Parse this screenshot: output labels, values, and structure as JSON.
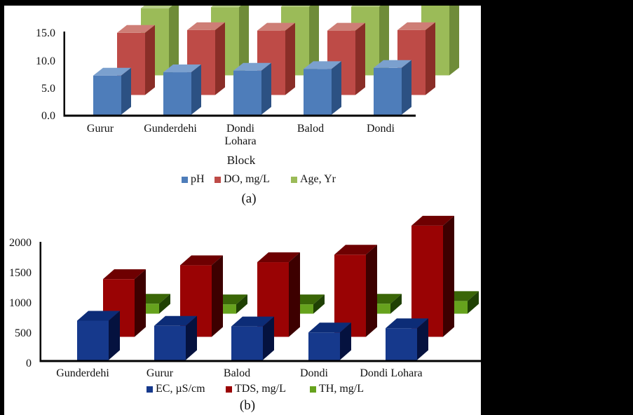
{
  "canvas": {
    "background": "#ffffff",
    "matte": "#000000",
    "text_color": "#111111"
  },
  "figure": {
    "caption_a": "(a)",
    "caption_b": "(b)",
    "chart_a_x_axis_title": "Block"
  },
  "chart_data": [
    {
      "id": "a",
      "type": "bar",
      "style": "3d-column",
      "caption": "(a)",
      "xlabel": "Block",
      "ylabel": "",
      "title": "",
      "grid": false,
      "legend_position": "bottom",
      "categories": [
        "Gurur",
        "Gunderdehi",
        "Dondi\nLohara",
        "Balod",
        "Dondi"
      ],
      "y_ticks": [
        "0.0",
        "5.0",
        "10.0",
        "15.0"
      ],
      "y_tick_values": [
        0,
        5,
        10,
        15
      ],
      "ylim": [
        0,
        15
      ],
      "series": [
        {
          "name": "pH",
          "values": [
            7.1,
            7.7,
            8.0,
            8.3,
            8.5
          ],
          "colors": {
            "front": "#4E7DBA",
            "top": "#7BA0CE",
            "side": "#2C5183"
          }
        },
        {
          "name": "DO, mg/L",
          "values": [
            11.3,
            11.8,
            11.7,
            11.7,
            11.8
          ],
          "colors": {
            "front": "#BE4B47",
            "top": "#CE7E76",
            "side": "#8A2E28"
          }
        },
        {
          "name": "Age, Yr",
          "values": [
            12.2,
            12.4,
            12.5,
            12.5,
            12.9
          ],
          "colors": {
            "front": "#9BBB58",
            "top": "#B5CD84",
            "side": "#6F8C39"
          }
        }
      ]
    },
    {
      "id": "b",
      "type": "bar",
      "style": "3d-column",
      "caption": "(b)",
      "xlabel": "",
      "ylabel": "",
      "title": "",
      "grid": false,
      "legend_position": "bottom",
      "categories": [
        "Gunderdehi",
        "Gurur",
        "Balod",
        "Dondi",
        "Dondi Lohara"
      ],
      "y_ticks": [
        "0",
        "500",
        "1000",
        "1500",
        "2000"
      ],
      "y_tick_values": [
        0,
        500,
        1000,
        1500,
        2000
      ],
      "ylim": [
        0,
        2000
      ],
      "series": [
        {
          "name": "EC, µS/cm",
          "values": [
            650,
            565,
            555,
            455,
            525
          ],
          "colors": {
            "front": "#16398C",
            "top": "#0C2C77",
            "side": "#05123F"
          }
        },
        {
          "name": "TDS, mg/L",
          "values": [
            955,
            1185,
            1235,
            1360,
            1840
          ],
          "colors": {
            "front": "#9A0304",
            "top": "#6E0001",
            "side": "#3D0000"
          }
        },
        {
          "name": "TH, mg/L",
          "values": [
            165,
            155,
            155,
            165,
            210
          ],
          "colors": {
            "front": "#66A21D",
            "top": "#3A6607",
            "side": "#1F4103"
          }
        }
      ]
    }
  ]
}
